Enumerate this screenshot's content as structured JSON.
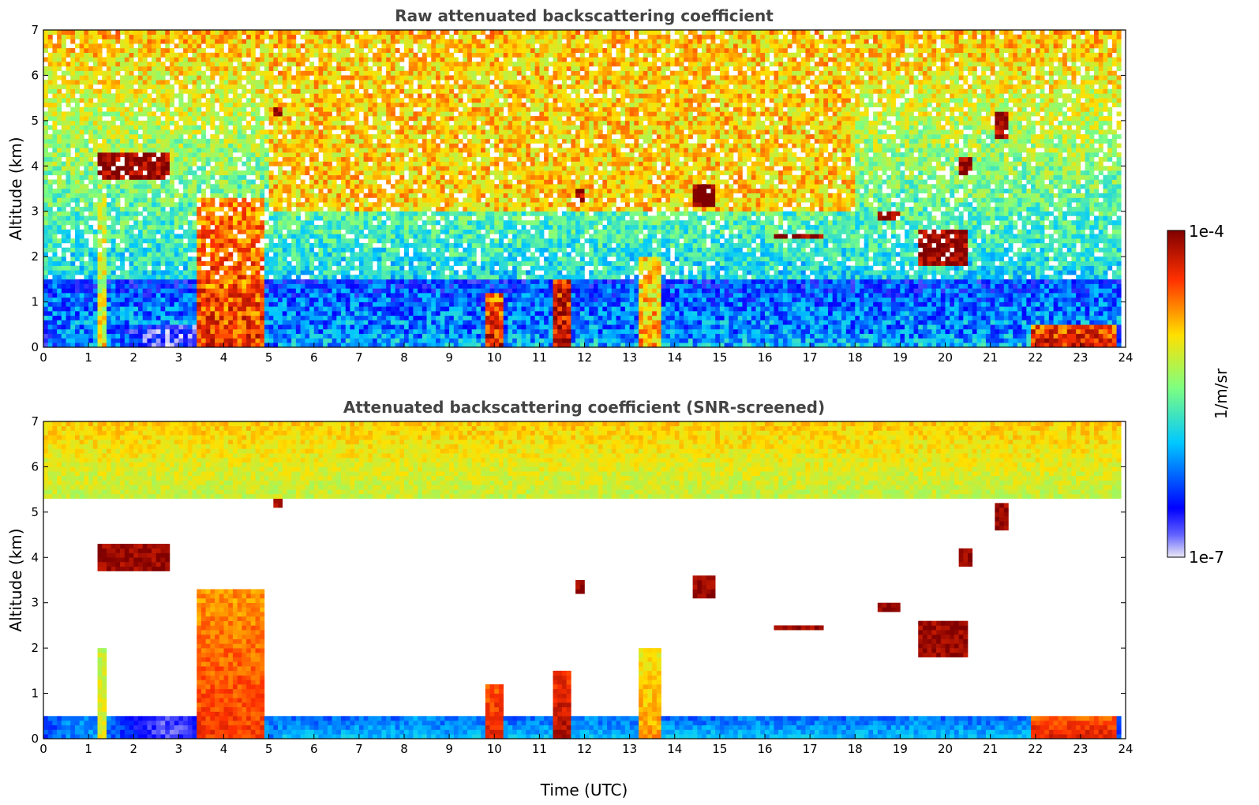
{
  "chart_data": [
    {
      "type": "heatmap",
      "title": "Raw attenuated backscattering coefficient",
      "xlabel": "",
      "ylabel": "Altitude (km)",
      "xlim": [
        0,
        24
      ],
      "ylim": [
        0,
        7
      ],
      "xticks": [
        "0",
        "1",
        "2",
        "3",
        "4",
        "5",
        "6",
        "7",
        "8",
        "9",
        "10",
        "11",
        "12",
        "13",
        "14",
        "15",
        "16",
        "17",
        "18",
        "19",
        "20",
        "21",
        "22",
        "23",
        "24"
      ],
      "yticks": [
        "0",
        "1",
        "2",
        "3",
        "4",
        "5",
        "6",
        "7"
      ],
      "colorscale": "jet (log)",
      "features": [
        {
          "t0": 1.2,
          "t1": 1.35,
          "z0": 0.0,
          "z1": 4.0,
          "intensity": 0.65
        },
        {
          "t0": 3.4,
          "t1": 4.85,
          "z0": 0.0,
          "z1": 3.3,
          "intensity": 0.85
        },
        {
          "t0": 5.2,
          "t1": 23.8,
          "z0": 0.0,
          "z1": 0.5,
          "intensity": 0.35
        },
        {
          "t0": 9.8,
          "t1": 10.2,
          "z0": 0.0,
          "z1": 1.2,
          "intensity": 0.9
        },
        {
          "t0": 11.3,
          "t1": 11.7,
          "z0": 0.0,
          "z1": 1.5,
          "intensity": 0.95
        },
        {
          "t0": 13.2,
          "t1": 13.7,
          "z0": 0.0,
          "z1": 2.0,
          "intensity": 0.75
        },
        {
          "t0": 21.9,
          "t1": 23.8,
          "z0": 0.0,
          "z1": 0.5,
          "intensity": 0.9
        }
      ]
    },
    {
      "type": "heatmap",
      "title": "Attenuated backscattering coefficient (SNR-screened)",
      "xlabel": "Time (UTC)",
      "ylabel": "Altitude (km)",
      "xlim": [
        0,
        24
      ],
      "ylim": [
        0,
        7
      ],
      "xticks": [
        "0",
        "1",
        "2",
        "3",
        "4",
        "5",
        "6",
        "7",
        "8",
        "9",
        "10",
        "11",
        "12",
        "13",
        "14",
        "15",
        "16",
        "17",
        "18",
        "19",
        "20",
        "21",
        "22",
        "23",
        "24"
      ],
      "yticks": [
        "0",
        "1",
        "2",
        "3",
        "4",
        "5",
        "6",
        "7"
      ],
      "colorscale": "jet (log)",
      "screened": true
    }
  ],
  "colorbar": {
    "label": "1/m/sr",
    "max_label": "1e-4",
    "min_label": "1e-7"
  },
  "colors": {
    "stops": [
      "#ebe8f5",
      "#0000ff",
      "#00d0ff",
      "#7fff7f",
      "#ffe000",
      "#ff3000",
      "#800000"
    ],
    "frame": "#000000",
    "title": "#444444"
  }
}
